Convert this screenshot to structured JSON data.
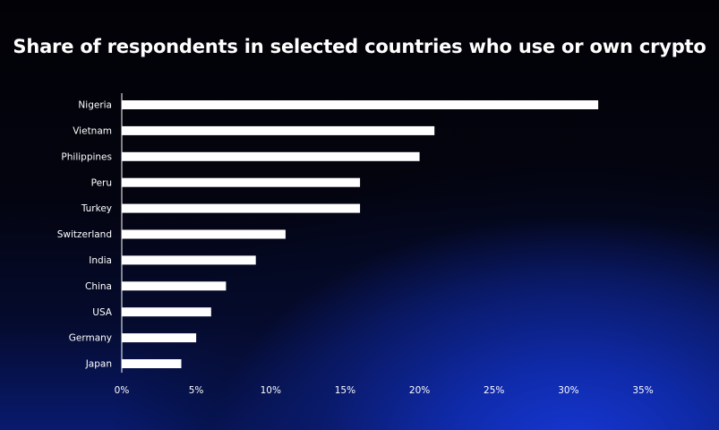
{
  "colors": {
    "bar": "#ffffff",
    "text": "#ffffff",
    "background_dark": "#000000",
    "background_accent": "#1638d6"
  },
  "chart_data": {
    "type": "bar",
    "orientation": "horizontal",
    "title": "Share of respondents in selected countries who use or own crypto",
    "categories": [
      "Nigeria",
      "Vietnam",
      "Philippines",
      "Peru",
      "Turkey",
      "Switzerland",
      "India",
      "China",
      "USA",
      "Germany",
      "Japan"
    ],
    "values": [
      32,
      21,
      20,
      16,
      16,
      11,
      9,
      7,
      6,
      5,
      4
    ],
    "value_unit": "%",
    "xlim": [
      0,
      35
    ],
    "xticks": [
      0,
      5,
      10,
      15,
      20,
      25,
      30,
      35
    ],
    "xtick_labels": [
      "0%",
      "5%",
      "10%",
      "15%",
      "20%",
      "25%",
      "30%",
      "35%"
    ],
    "xlabel": "",
    "ylabel": "",
    "grid": false,
    "legend": "none"
  }
}
